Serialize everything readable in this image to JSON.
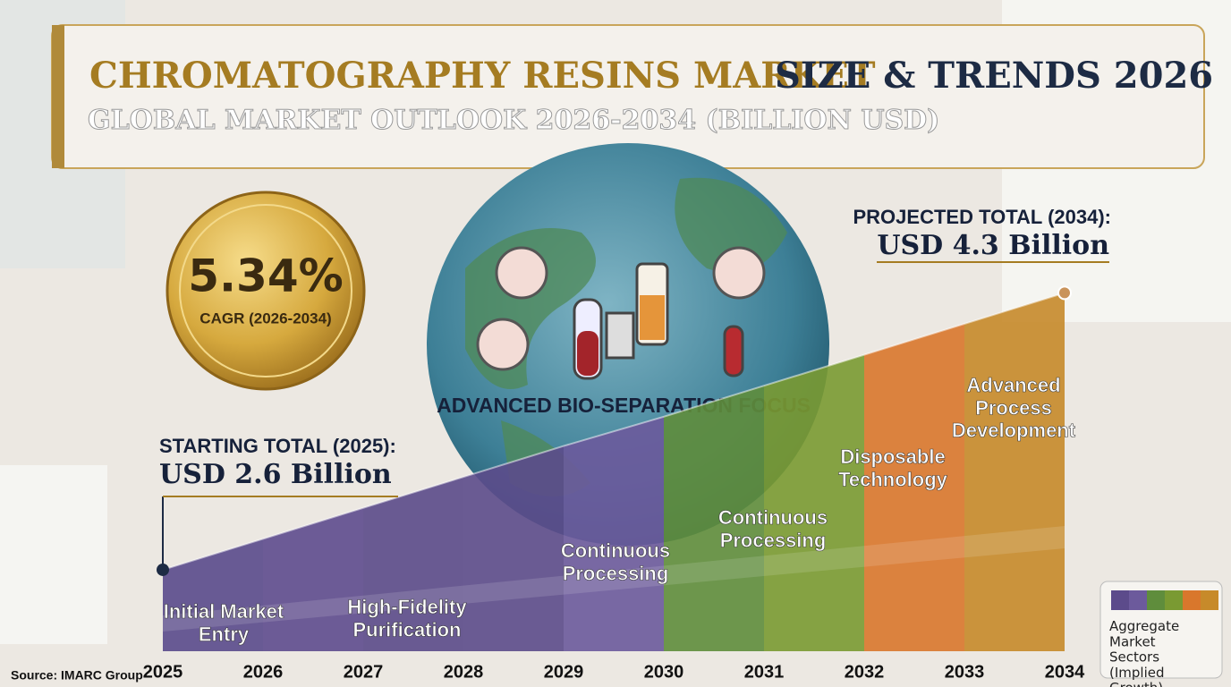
{
  "chart_data": {
    "type": "area",
    "title_main": "CHROMATOGRAPHY RESINS MARKET",
    "title_rest": "SIZE & TRENDS 2026",
    "subtitle": "GLOBAL MARKET OUTLOOK 2026-2034 (BILLION USD)",
    "cagr_value": "5.34%",
    "cagr_label": "CAGR (2026-2034)",
    "center_label": "ADVANCED BIO-SEPARATION FOCUS",
    "start_label": "STARTING TOTAL (2025):",
    "end_label": "PROJECTED TOTAL (2034):",
    "categories": [
      "2025",
      "2026",
      "2027",
      "2028",
      "2029",
      "2030",
      "2031",
      "2032",
      "2033",
      "2034"
    ],
    "values": [
      2.6,
      2.79,
      2.98,
      3.17,
      3.36,
      3.54,
      3.73,
      3.92,
      4.11,
      4.3
    ],
    "value_labels": [
      "USD 2.6 Billion",
      null,
      null,
      null,
      null,
      null,
      null,
      null,
      null,
      "USD 4.3 Billion"
    ],
    "ylim": [
      2.1,
      4.5
    ],
    "band_colors": [
      "#5a4a8c",
      "#5e4b8e",
      "#5b4a8a",
      "#5c4b8b",
      "#6c5a9c",
      "#5f8d3c",
      "#7a9a32",
      "#d9772c",
      "#c78a2a"
    ],
    "annotations": [
      "Initial Market Entry",
      "High-Fidelity Purification",
      "Continuous Processing",
      "Continuous Processing",
      "Disposable Technology",
      "Advanced Process Development"
    ],
    "legend_label": "Aggregate Market Sectors (Implied Growth)",
    "source": "Source: IMARC Group"
  }
}
